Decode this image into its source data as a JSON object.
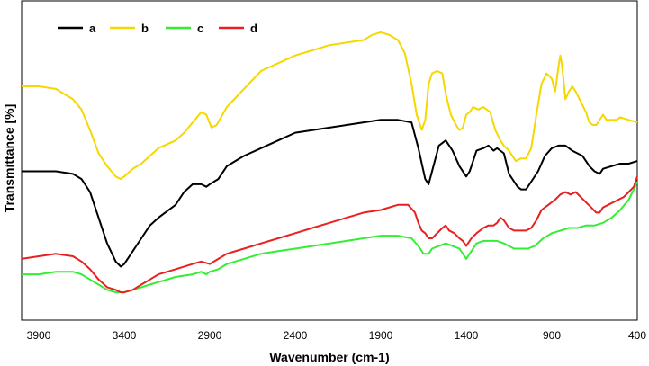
{
  "chart_data": {
    "type": "line",
    "xlabel": "Wavenumber (cm-1)",
    "ylabel": "Transmittance [%]",
    "xlim": [
      4000,
      400
    ],
    "x_reversed": true,
    "x_ticks": [
      3900,
      3400,
      2900,
      2400,
      1900,
      1400,
      900,
      400
    ],
    "y_ticks_shown": false,
    "grid": false,
    "legend_position": "top-left",
    "series": [
      {
        "name": "a",
        "color": "#000000",
        "points": [
          [
            4000,
            48
          ],
          [
            3900,
            48
          ],
          [
            3800,
            48
          ],
          [
            3700,
            47
          ],
          [
            3650,
            45
          ],
          [
            3600,
            40
          ],
          [
            3550,
            30
          ],
          [
            3500,
            20
          ],
          [
            3450,
            13
          ],
          [
            3420,
            11
          ],
          [
            3400,
            12
          ],
          [
            3350,
            17
          ],
          [
            3300,
            22
          ],
          [
            3250,
            27
          ],
          [
            3200,
            30
          ],
          [
            3100,
            35
          ],
          [
            3050,
            40
          ],
          [
            3000,
            43
          ],
          [
            2950,
            43
          ],
          [
            2920,
            42
          ],
          [
            2900,
            43
          ],
          [
            2850,
            45
          ],
          [
            2800,
            50
          ],
          [
            2700,
            54
          ],
          [
            2600,
            57
          ],
          [
            2500,
            60
          ],
          [
            2400,
            63
          ],
          [
            2300,
            64
          ],
          [
            2200,
            65
          ],
          [
            2100,
            66
          ],
          [
            2000,
            67
          ],
          [
            1900,
            68
          ],
          [
            1800,
            68
          ],
          [
            1720,
            67
          ],
          [
            1680,
            57
          ],
          [
            1640,
            45
          ],
          [
            1620,
            43
          ],
          [
            1600,
            48
          ],
          [
            1560,
            58
          ],
          [
            1520,
            60
          ],
          [
            1480,
            56
          ],
          [
            1440,
            50
          ],
          [
            1400,
            46
          ],
          [
            1380,
            48
          ],
          [
            1340,
            56
          ],
          [
            1300,
            57
          ],
          [
            1270,
            58
          ],
          [
            1240,
            56
          ],
          [
            1220,
            57
          ],
          [
            1180,
            55
          ],
          [
            1150,
            47
          ],
          [
            1120,
            44
          ],
          [
            1100,
            42
          ],
          [
            1080,
            41
          ],
          [
            1050,
            41
          ],
          [
            1020,
            44
          ],
          [
            980,
            48
          ],
          [
            940,
            54
          ],
          [
            900,
            57
          ],
          [
            860,
            58
          ],
          [
            820,
            58
          ],
          [
            780,
            56
          ],
          [
            720,
            54
          ],
          [
            680,
            50
          ],
          [
            650,
            48
          ],
          [
            620,
            47
          ],
          [
            600,
            49
          ],
          [
            550,
            50
          ],
          [
            500,
            51
          ],
          [
            450,
            51
          ],
          [
            400,
            52
          ]
        ]
      },
      {
        "name": "b",
        "color": "#f5d800",
        "points": [
          [
            4000,
            81
          ],
          [
            3900,
            81
          ],
          [
            3800,
            80
          ],
          [
            3700,
            76
          ],
          [
            3650,
            72
          ],
          [
            3600,
            64
          ],
          [
            3550,
            55
          ],
          [
            3500,
            50
          ],
          [
            3450,
            46
          ],
          [
            3420,
            45
          ],
          [
            3400,
            46
          ],
          [
            3350,
            49
          ],
          [
            3300,
            51
          ],
          [
            3250,
            54
          ],
          [
            3200,
            57
          ],
          [
            3100,
            60
          ],
          [
            3050,
            63
          ],
          [
            3000,
            67
          ],
          [
            2950,
            71
          ],
          [
            2920,
            70
          ],
          [
            2890,
            65
          ],
          [
            2860,
            66
          ],
          [
            2800,
            73
          ],
          [
            2700,
            80
          ],
          [
            2600,
            87
          ],
          [
            2500,
            90
          ],
          [
            2400,
            93
          ],
          [
            2300,
            95
          ],
          [
            2200,
            97
          ],
          [
            2100,
            98
          ],
          [
            2000,
            99
          ],
          [
            1950,
            101
          ],
          [
            1900,
            102
          ],
          [
            1850,
            101
          ],
          [
            1800,
            99
          ],
          [
            1760,
            94
          ],
          [
            1720,
            82
          ],
          [
            1690,
            70
          ],
          [
            1660,
            64
          ],
          [
            1640,
            68
          ],
          [
            1620,
            82
          ],
          [
            1600,
            86
          ],
          [
            1570,
            87
          ],
          [
            1540,
            86
          ],
          [
            1520,
            78
          ],
          [
            1490,
            70
          ],
          [
            1460,
            66
          ],
          [
            1440,
            64
          ],
          [
            1420,
            65
          ],
          [
            1400,
            70
          ],
          [
            1380,
            71
          ],
          [
            1360,
            73
          ],
          [
            1330,
            72
          ],
          [
            1300,
            73
          ],
          [
            1260,
            71
          ],
          [
            1230,
            64
          ],
          [
            1200,
            60
          ],
          [
            1180,
            58
          ],
          [
            1150,
            56
          ],
          [
            1130,
            54
          ],
          [
            1110,
            52
          ],
          [
            1080,
            53
          ],
          [
            1050,
            53
          ],
          [
            1020,
            57
          ],
          [
            990,
            70
          ],
          [
            960,
            82
          ],
          [
            930,
            86
          ],
          [
            900,
            84
          ],
          [
            880,
            79
          ],
          [
            860,
            89
          ],
          [
            850,
            93
          ],
          [
            840,
            89
          ],
          [
            820,
            76
          ],
          [
            800,
            79
          ],
          [
            780,
            81
          ],
          [
            760,
            79
          ],
          [
            730,
            75
          ],
          [
            700,
            71
          ],
          [
            680,
            67
          ],
          [
            660,
            66
          ],
          [
            640,
            66
          ],
          [
            620,
            68
          ],
          [
            600,
            70
          ],
          [
            580,
            68
          ],
          [
            550,
            68
          ],
          [
            520,
            68
          ],
          [
            500,
            69
          ],
          [
            450,
            68
          ],
          [
            400,
            67
          ]
        ]
      },
      {
        "name": "c",
        "color": "#33ee33",
        "points": [
          [
            4000,
            8
          ],
          [
            3900,
            8
          ],
          [
            3800,
            9
          ],
          [
            3700,
            9
          ],
          [
            3650,
            8
          ],
          [
            3600,
            6
          ],
          [
            3550,
            4
          ],
          [
            3500,
            2
          ],
          [
            3450,
            1
          ],
          [
            3400,
            1
          ],
          [
            3350,
            2
          ],
          [
            3300,
            3
          ],
          [
            3250,
            4
          ],
          [
            3200,
            5
          ],
          [
            3100,
            7
          ],
          [
            3000,
            8
          ],
          [
            2950,
            9
          ],
          [
            2920,
            8
          ],
          [
            2900,
            9
          ],
          [
            2850,
            10
          ],
          [
            2800,
            12
          ],
          [
            2700,
            14
          ],
          [
            2600,
            16
          ],
          [
            2500,
            17
          ],
          [
            2400,
            18
          ],
          [
            2300,
            19
          ],
          [
            2200,
            20
          ],
          [
            2100,
            21
          ],
          [
            2000,
            22
          ],
          [
            1900,
            23
          ],
          [
            1800,
            23
          ],
          [
            1720,
            22
          ],
          [
            1680,
            19
          ],
          [
            1650,
            16
          ],
          [
            1620,
            16
          ],
          [
            1600,
            18
          ],
          [
            1560,
            19
          ],
          [
            1520,
            20
          ],
          [
            1480,
            19
          ],
          [
            1440,
            18
          ],
          [
            1410,
            15
          ],
          [
            1400,
            14
          ],
          [
            1380,
            16
          ],
          [
            1340,
            20
          ],
          [
            1300,
            21
          ],
          [
            1260,
            21
          ],
          [
            1220,
            21
          ],
          [
            1180,
            20
          ],
          [
            1150,
            19
          ],
          [
            1120,
            18
          ],
          [
            1080,
            18
          ],
          [
            1040,
            18
          ],
          [
            1000,
            19
          ],
          [
            950,
            22
          ],
          [
            900,
            24
          ],
          [
            850,
            25
          ],
          [
            800,
            26
          ],
          [
            750,
            26
          ],
          [
            700,
            27
          ],
          [
            650,
            27
          ],
          [
            600,
            28
          ],
          [
            550,
            30
          ],
          [
            500,
            33
          ],
          [
            450,
            37
          ],
          [
            420,
            41
          ],
          [
            400,
            44
          ]
        ]
      },
      {
        "name": "d",
        "color": "#e82020",
        "points": [
          [
            4000,
            14
          ],
          [
            3900,
            15
          ],
          [
            3800,
            16
          ],
          [
            3700,
            15
          ],
          [
            3650,
            13
          ],
          [
            3600,
            10
          ],
          [
            3550,
            6
          ],
          [
            3500,
            3
          ],
          [
            3450,
            2
          ],
          [
            3420,
            1
          ],
          [
            3400,
            1
          ],
          [
            3350,
            2
          ],
          [
            3300,
            4
          ],
          [
            3250,
            6
          ],
          [
            3200,
            8
          ],
          [
            3100,
            10
          ],
          [
            3000,
            12
          ],
          [
            2950,
            13
          ],
          [
            2900,
            12
          ],
          [
            2850,
            14
          ],
          [
            2800,
            16
          ],
          [
            2700,
            18
          ],
          [
            2600,
            20
          ],
          [
            2500,
            22
          ],
          [
            2400,
            24
          ],
          [
            2300,
            26
          ],
          [
            2200,
            28
          ],
          [
            2100,
            30
          ],
          [
            2000,
            32
          ],
          [
            1900,
            33
          ],
          [
            1800,
            35
          ],
          [
            1740,
            35
          ],
          [
            1700,
            32
          ],
          [
            1680,
            28
          ],
          [
            1660,
            25
          ],
          [
            1640,
            24
          ],
          [
            1620,
            22
          ],
          [
            1600,
            22
          ],
          [
            1570,
            24
          ],
          [
            1540,
            26
          ],
          [
            1520,
            27
          ],
          [
            1500,
            25
          ],
          [
            1470,
            24
          ],
          [
            1440,
            22
          ],
          [
            1420,
            21
          ],
          [
            1400,
            19
          ],
          [
            1370,
            22
          ],
          [
            1340,
            24
          ],
          [
            1300,
            26
          ],
          [
            1270,
            27
          ],
          [
            1240,
            27
          ],
          [
            1220,
            28
          ],
          [
            1200,
            30
          ],
          [
            1180,
            29
          ],
          [
            1150,
            26
          ],
          [
            1120,
            25
          ],
          [
            1080,
            25
          ],
          [
            1050,
            25
          ],
          [
            1020,
            26
          ],
          [
            990,
            29
          ],
          [
            960,
            33
          ],
          [
            920,
            35
          ],
          [
            880,
            37
          ],
          [
            850,
            39
          ],
          [
            820,
            40
          ],
          [
            790,
            39
          ],
          [
            760,
            40
          ],
          [
            730,
            38
          ],
          [
            700,
            36
          ],
          [
            670,
            34
          ],
          [
            640,
            32
          ],
          [
            620,
            32
          ],
          [
            600,
            34
          ],
          [
            570,
            35
          ],
          [
            540,
            36
          ],
          [
            510,
            37
          ],
          [
            480,
            38
          ],
          [
            450,
            40
          ],
          [
            420,
            42
          ],
          [
            400,
            46
          ]
        ]
      }
    ]
  }
}
